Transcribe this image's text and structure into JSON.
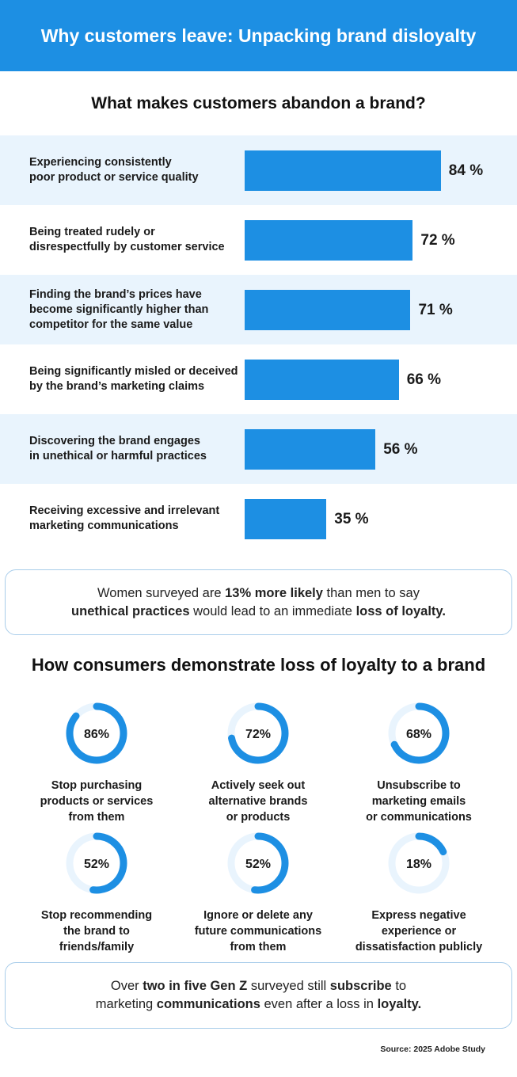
{
  "header": {
    "title": "Why customers leave: Unpacking brand disloyalty"
  },
  "section1": {
    "title": "What makes customers abandon a brand?"
  },
  "section2": {
    "title": "How consumers demonstrate loss of loyalty to a brand"
  },
  "colors": {
    "accent": "#1d8fe3",
    "row_shade": "#e9f4fd",
    "donut_track": "#e9f4fd",
    "border": "#a9cdea"
  },
  "chart_data": [
    {
      "type": "bar",
      "orientation": "horizontal",
      "title": "What makes customers abandon a brand?",
      "categories": [
        "Experiencing consistently\npoor product or service quality",
        "Being treated rudely or\ndisrespectfully by customer service",
        "Finding the brand’s prices have\nbecome significantly higher than\ncompetitor for the same value",
        "Being significantly misled or deceived\nby the brand’s marketing claims",
        "Discovering the brand engages\nin unethical or harmful practices",
        "Receiving excessive and irrelevant\nmarketing communications"
      ],
      "values": [
        84,
        72,
        71,
        66,
        56,
        35
      ],
      "value_labels": [
        "84 %",
        "72 %",
        "71 %",
        "66 %",
        "56 %",
        "35 %"
      ],
      "unit": "%",
      "xlim": [
        0,
        100
      ]
    },
    {
      "type": "pie",
      "style": "donut",
      "title": "How consumers demonstrate loss of loyalty to a brand",
      "categories": [
        "Stop purchasing\nproducts or services\nfrom them",
        "Actively seek out\nalternative brands\nor products",
        "Unsubscribe to\nmarketing emails\nor communications",
        "Stop recommending\nthe brand to\nfriends/family",
        "Ignore or delete any\nfuture communications\nfrom them",
        "Express negative\nexperience or\ndissatisfaction publicly"
      ],
      "values": [
        86,
        72,
        68,
        52,
        52,
        18
      ],
      "value_labels": [
        "86%",
        "72%",
        "68%",
        "52%",
        "52%",
        "18%"
      ],
      "unit": "%"
    }
  ],
  "callout1": {
    "parts": [
      {
        "text": "Women surveyed are ",
        "bold": false
      },
      {
        "text": "13% more likely",
        "bold": true
      },
      {
        "text": " than men to say\n",
        "bold": false
      },
      {
        "text": "unethical practices",
        "bold": true
      },
      {
        "text": " would lead to an immediate ",
        "bold": false
      },
      {
        "text": "loss of loyalty.",
        "bold": true
      }
    ]
  },
  "callout2": {
    "parts": [
      {
        "text": "Over ",
        "bold": false
      },
      {
        "text": "two in five Gen Z",
        "bold": true
      },
      {
        "text": " surveyed still ",
        "bold": false
      },
      {
        "text": "subscribe",
        "bold": true
      },
      {
        "text": " to\nmarketing ",
        "bold": false
      },
      {
        "text": "communications",
        "bold": true
      },
      {
        "text": " even after a loss in ",
        "bold": false
      },
      {
        "text": "loyalty.",
        "bold": true
      }
    ]
  },
  "source": "Source: 2025 Adobe Study"
}
